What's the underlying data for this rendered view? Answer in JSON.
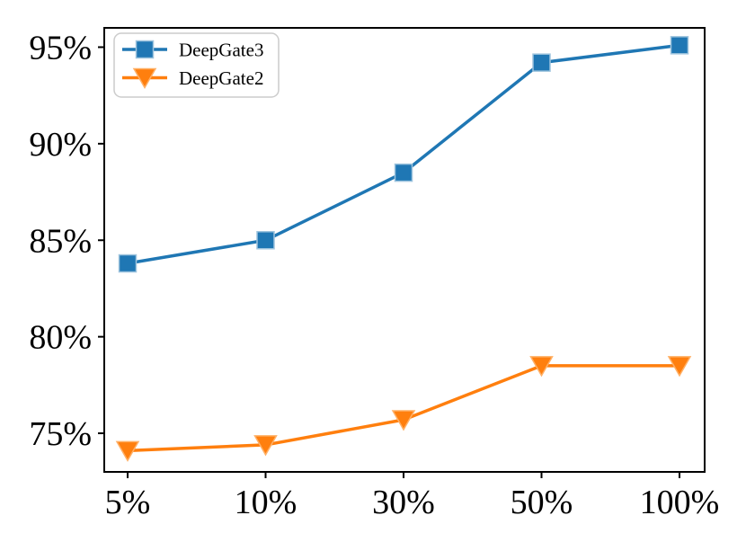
{
  "chart_data": {
    "type": "line",
    "categories": [
      "5%",
      "10%",
      "30%",
      "50%",
      "100%"
    ],
    "series": [
      {
        "name": "DeepGate3",
        "marker": "square",
        "color": "#1f77b4",
        "marker_edge": "#9ec4de",
        "values": [
          83.8,
          85.0,
          88.5,
          94.2,
          95.1
        ]
      },
      {
        "name": "DeepGate2",
        "marker": "triangle-down",
        "color": "#ff7f0e",
        "marker_edge": "#ffb066",
        "values": [
          74.1,
          74.4,
          75.7,
          78.5,
          78.5
        ]
      }
    ],
    "title": "",
    "xlabel": "",
    "ylabel": "",
    "ylim": [
      73,
      96
    ],
    "yticks": [
      75,
      80,
      85,
      90,
      95
    ],
    "ytick_suffix": "%",
    "grid": false,
    "legend_position": "upper-left"
  },
  "colors": {
    "background": "#ffffff",
    "axis": "#000000",
    "text": "#000000",
    "legend_border": "#cccccc",
    "legend_fill": "#ffffff"
  }
}
